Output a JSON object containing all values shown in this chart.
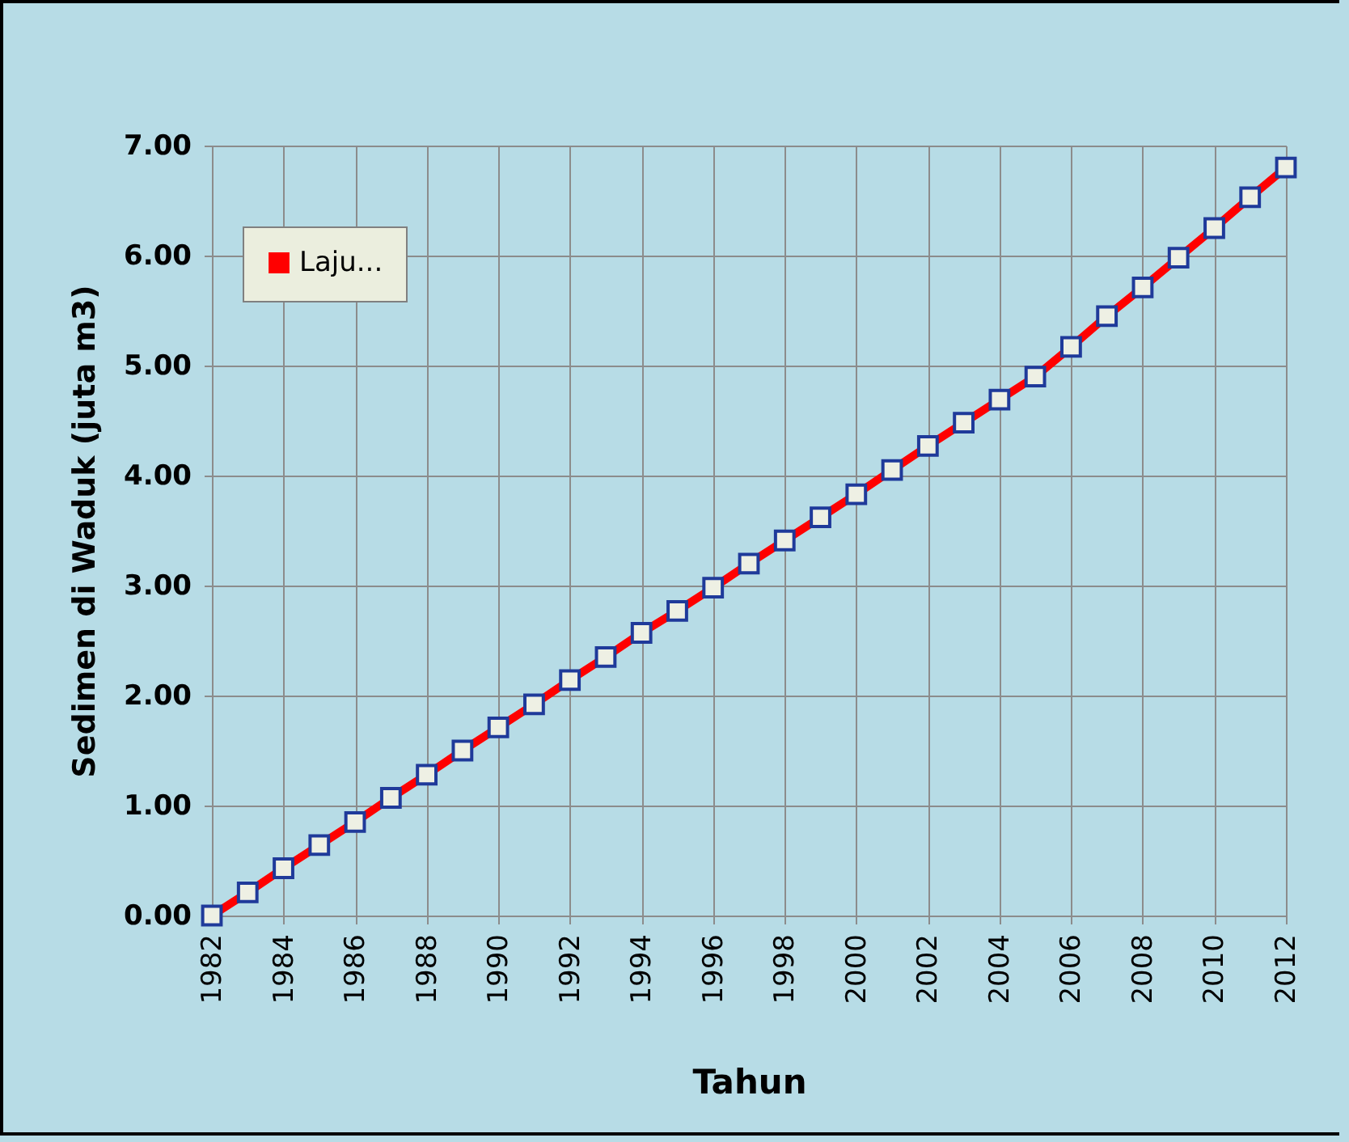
{
  "chart_data": {
    "type": "line",
    "xlabel": "Tahun",
    "ylabel": "Sedimen di Waduk (juta m3)",
    "x": [
      1982,
      1983,
      1984,
      1985,
      1986,
      1987,
      1988,
      1989,
      1990,
      1991,
      1992,
      1993,
      1994,
      1995,
      1996,
      1997,
      1998,
      1999,
      2000,
      2001,
      2002,
      2003,
      2004,
      2005,
      2006,
      2007,
      2008,
      2009,
      2010,
      2011,
      2012
    ],
    "series": [
      {
        "name": "Laju...",
        "color": "#ff0000",
        "values": [
          0,
          0.21,
          0.43,
          0.64,
          0.85,
          1.07,
          1.28,
          1.5,
          1.71,
          1.92,
          2.14,
          2.35,
          2.57,
          2.77,
          2.98,
          3.2,
          3.41,
          3.62,
          3.83,
          4.05,
          4.27,
          4.48,
          4.69,
          4.9,
          5.17,
          5.45,
          5.71,
          5.98,
          6.25,
          6.53,
          6.8
        ]
      }
    ],
    "xlim": [
      1982,
      2012
    ],
    "xticks": [
      1982,
      1984,
      1986,
      1988,
      1990,
      1992,
      1994,
      1996,
      1998,
      2000,
      2002,
      2004,
      2006,
      2008,
      2010,
      2012
    ],
    "ylim": [
      0,
      7
    ],
    "yticks": [
      {
        "value": 0,
        "label": "0.00"
      },
      {
        "value": 1,
        "label": "1.00"
      },
      {
        "value": 2,
        "label": "2.00"
      },
      {
        "value": 3,
        "label": "3.00"
      },
      {
        "value": 4,
        "label": "4.00"
      },
      {
        "value": 5,
        "label": "5.00"
      },
      {
        "value": 6,
        "label": "6.00"
      },
      {
        "value": 7,
        "label": "7.00"
      }
    ],
    "grid": true,
    "legend": "top left",
    "marker": "square",
    "line_style": "solid"
  }
}
